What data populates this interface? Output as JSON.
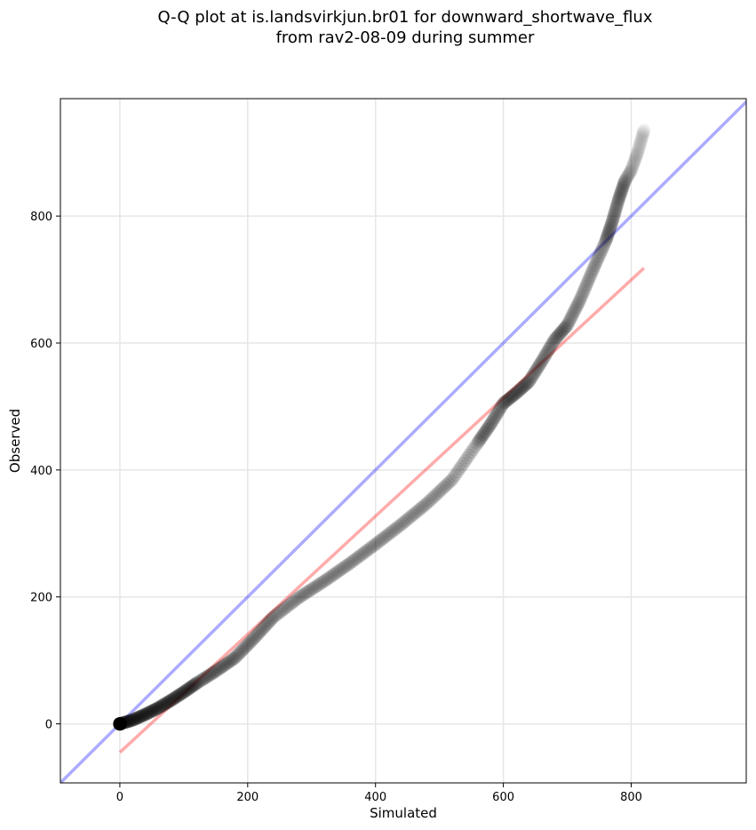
{
  "chart_data": {
    "type": "scatter",
    "title_line1": "Q-Q plot at is.landsvirkjun.br01 for downward_shortwave_flux",
    "title_line2": "from rav2-08-09 during summer",
    "xlabel": "Simulated",
    "ylabel": "Observed",
    "xlim": [
      -93,
      980
    ],
    "ylim": [
      -93,
      985
    ],
    "xticks": [
      0,
      200,
      400,
      600,
      800
    ],
    "yticks": [
      0,
      200,
      400,
      600,
      800
    ],
    "grid": true,
    "colors": {
      "points": "#000000",
      "identity_line": "#0000ff",
      "fit_line": "#ff0000",
      "grid": "#e6e6e6"
    },
    "identity_line": {
      "x": [
        -93,
        980
      ],
      "y": [
        -93,
        980
      ]
    },
    "fit_line": {
      "x": [
        0,
        820
      ],
      "y": [
        -45,
        718
      ]
    },
    "quantile_curve": {
      "x": [
        0,
        20,
        40,
        60,
        80,
        100,
        120,
        150,
        180,
        210,
        240,
        280,
        320,
        360,
        400,
        440,
        480,
        520,
        560,
        580,
        600,
        620,
        640,
        660,
        680,
        700,
        720,
        740,
        760,
        770,
        780,
        790,
        800,
        810,
        820
      ],
      "y": [
        0,
        6,
        15,
        25,
        37,
        50,
        64,
        83,
        104,
        135,
        168,
        199,
        225,
        253,
        283,
        314,
        347,
        385,
        443,
        472,
        505,
        521,
        539,
        571,
        605,
        628,
        668,
        715,
        760,
        790,
        825,
        855,
        872,
        900,
        935
      ]
    },
    "n_points": 480
  }
}
